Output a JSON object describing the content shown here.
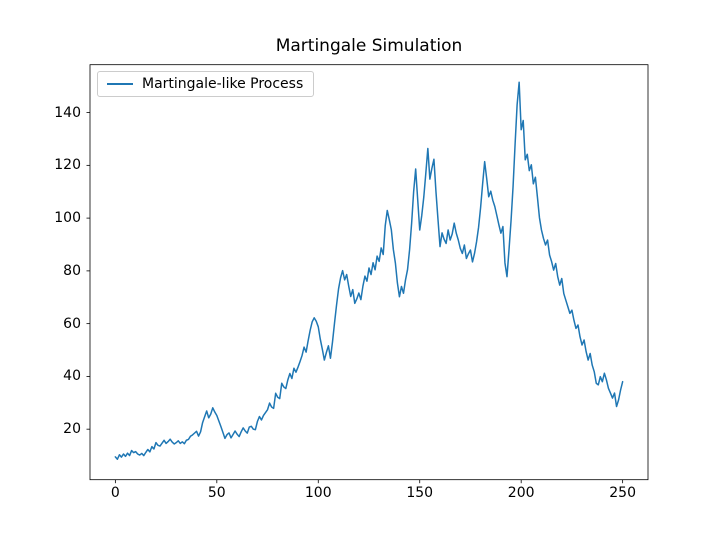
{
  "chart_data": {
    "type": "line",
    "title": "Martingale Simulation",
    "legend": {
      "position": "upper left",
      "entries": [
        "Martingale-like Process"
      ]
    },
    "xlabel": "",
    "ylabel": "",
    "grid": false,
    "xticks": [
      0,
      50,
      100,
      150,
      200,
      250
    ],
    "yticks": [
      20,
      40,
      60,
      80,
      100,
      120,
      140
    ],
    "xlim": [
      -12.5,
      262.5
    ],
    "ylim": [
      0.85,
      158.15
    ],
    "series": [
      {
        "name": "Martingale-like Process",
        "color": "#1f77b4",
        "x_start": 0,
        "x_step": 1,
        "values": [
          9.5,
          8.6,
          10.3,
          9.4,
          10.6,
          9.7,
          10.9,
          10.0,
          11.9,
          11.1,
          11.5,
          10.6,
          10.2,
          10.8,
          10.0,
          11.2,
          12.3,
          11.4,
          13.4,
          12.5,
          14.9,
          13.9,
          13.6,
          14.7,
          15.8,
          14.6,
          15.3,
          16.2,
          15.1,
          14.4,
          14.9,
          15.6,
          14.6,
          15.2,
          14.5,
          15.8,
          16.1,
          17.3,
          17.8,
          18.5,
          19.2,
          17.4,
          19.0,
          22.5,
          24.7,
          26.9,
          24.3,
          25.7,
          28.1,
          26.5,
          25.2,
          23.1,
          21.0,
          18.8,
          16.5,
          17.9,
          18.6,
          16.7,
          18.0,
          19.3,
          18.1,
          17.2,
          19.0,
          20.5,
          19.3,
          18.5,
          20.8,
          21.1,
          20.0,
          19.8,
          22.9,
          24.8,
          23.5,
          25.2,
          26.3,
          27.4,
          29.9,
          28.4,
          27.9,
          33.6,
          32.1,
          31.6,
          37.4,
          36.0,
          35.4,
          38.7,
          41.1,
          39.2,
          43.1,
          41.6,
          43.5,
          45.6,
          47.9,
          51.1,
          49.2,
          53.5,
          57.5,
          60.7,
          62.2,
          60.9,
          58.8,
          54.1,
          50.3,
          46.2,
          49.1,
          51.6,
          46.9,
          53.0,
          60.2,
          67.0,
          73.2,
          77.4,
          80.1,
          76.6,
          78.6,
          74.2,
          70.3,
          72.9,
          67.7,
          69.4,
          71.6,
          69.1,
          74.2,
          78.0,
          76.1,
          81.1,
          78.6,
          83.1,
          80.4,
          85.6,
          83.6,
          88.7,
          86.2,
          97.1,
          102.9,
          99.4,
          95.6,
          88.1,
          83.0,
          75.4,
          70.2,
          74.1,
          71.5,
          76.6,
          80.5,
          88.0,
          98.0,
          110.0,
          118.6,
          107.0,
          95.5,
          101.0,
          108.0,
          117.0,
          126.4,
          114.8,
          118.9,
          122.3,
          110.0,
          99.5,
          89.2,
          94.4,
          92.0,
          90.4,
          95.5,
          91.7,
          94.0,
          98.1,
          94.3,
          91.7,
          88.5,
          86.6,
          89.8,
          84.7,
          86.5,
          87.9,
          83.4,
          86.6,
          91.0,
          96.5,
          104.0,
          113.0,
          121.4,
          115.0,
          108.1,
          110.2,
          106.8,
          104.4,
          101.0,
          97.5,
          94.3,
          96.8,
          83.0,
          77.8,
          88.0,
          99.0,
          112.0,
          128.0,
          143.0,
          151.5,
          133.5,
          137.0,
          122.1,
          124.2,
          118.0,
          120.2,
          113.0,
          115.5,
          108.0,
          100.2,
          95.5,
          92.3,
          89.8,
          91.7,
          86.0,
          83.5,
          80.3,
          82.8,
          77.8,
          74.6,
          77.1,
          71.4,
          68.9,
          66.4,
          63.9,
          65.1,
          61.3,
          58.2,
          59.5,
          55.0,
          51.9,
          53.8,
          49.4,
          46.2,
          48.7,
          44.3,
          41.8,
          37.4,
          36.8,
          39.9,
          38.0,
          41.2,
          38.7,
          35.5,
          33.7,
          31.8,
          33.7,
          28.6,
          31.1,
          34.9,
          38.0
        ]
      }
    ]
  }
}
